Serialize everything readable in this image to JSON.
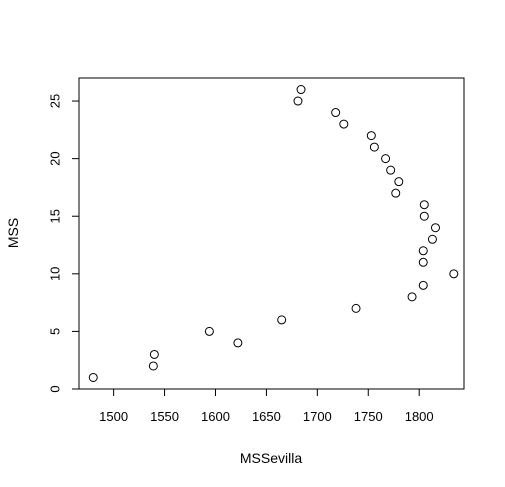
{
  "chart_data": {
    "type": "scatter",
    "title": "",
    "xlabel": "MSSevilla",
    "ylabel": "MSS",
    "xlim": [
      1466,
      1844
    ],
    "ylim": [
      0,
      27
    ],
    "xticks": [
      1500,
      1550,
      1600,
      1650,
      1700,
      1750,
      1800
    ],
    "yticks": [
      0,
      5,
      10,
      15,
      20,
      25
    ],
    "grid": false,
    "legend": "none",
    "marker": "open-circle",
    "point_color": "#000000",
    "points": [
      {
        "x": 1480,
        "y": 1
      },
      {
        "x": 1539,
        "y": 2
      },
      {
        "x": 1540,
        "y": 3
      },
      {
        "x": 1622,
        "y": 4
      },
      {
        "x": 1594,
        "y": 5
      },
      {
        "x": 1665,
        "y": 6
      },
      {
        "x": 1738,
        "y": 7
      },
      {
        "x": 1793,
        "y": 8
      },
      {
        "x": 1804,
        "y": 9
      },
      {
        "x": 1834,
        "y": 10
      },
      {
        "x": 1804,
        "y": 11
      },
      {
        "x": 1804,
        "y": 12
      },
      {
        "x": 1813,
        "y": 13
      },
      {
        "x": 1816,
        "y": 14
      },
      {
        "x": 1805,
        "y": 15
      },
      {
        "x": 1805,
        "y": 16
      },
      {
        "x": 1777,
        "y": 17
      },
      {
        "x": 1780,
        "y": 18
      },
      {
        "x": 1772,
        "y": 19
      },
      {
        "x": 1767,
        "y": 20
      },
      {
        "x": 1756,
        "y": 21
      },
      {
        "x": 1753,
        "y": 22
      },
      {
        "x": 1726,
        "y": 23
      },
      {
        "x": 1718,
        "y": 24
      },
      {
        "x": 1681,
        "y": 25
      },
      {
        "x": 1684,
        "y": 26
      }
    ]
  }
}
